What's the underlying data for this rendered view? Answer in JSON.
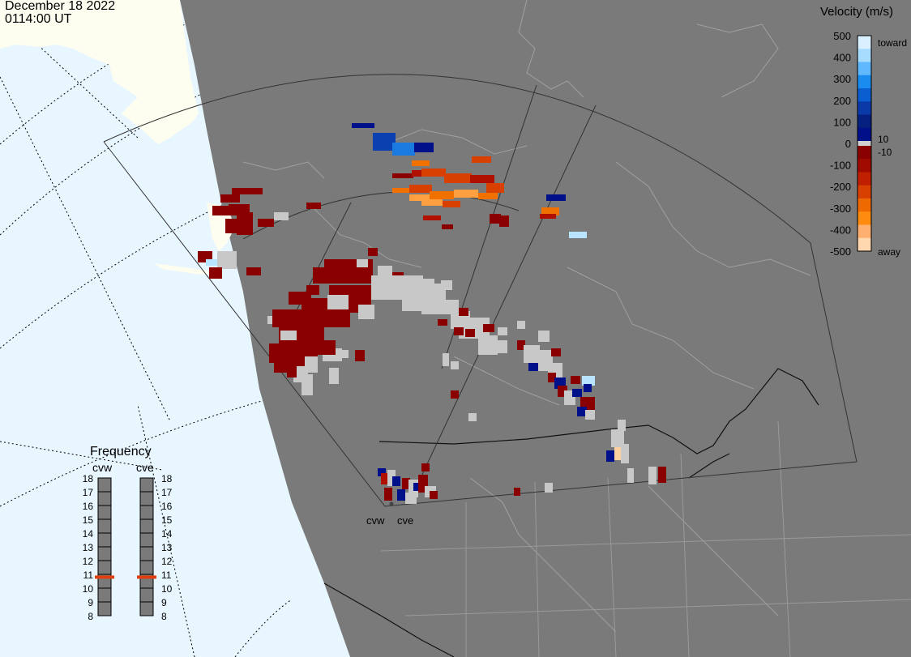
{
  "header": {
    "date": "December 18 2022",
    "time": "0114:00 UT"
  },
  "colors": {
    "ocean": "#e8f6ff",
    "land_visible": "#fdfdf0",
    "night_shade": "#7a7a7a",
    "coast": "#b0b0b0",
    "gray_scatter": "#c8c8c8"
  },
  "velocity_scale": {
    "title": "Velocity (m/s)",
    "tick_labels": [
      "500",
      "400",
      "300",
      "200",
      "100",
      "0",
      "-100",
      "-200",
      "-300",
      "-400",
      "-500"
    ],
    "end_labels": [
      "toward",
      "10",
      "-10",
      "away"
    ],
    "colors_toward": [
      "#d8f0ff",
      "#a8dcff",
      "#60b8ff",
      "#1a8cf0",
      "#0a5ed0",
      "#0a3aa8",
      "#062080",
      "#00108a"
    ],
    "colors_away": [
      "#8a0000",
      "#a00a00",
      "#c02000",
      "#d84000",
      "#ee6a00",
      "#ff8c10",
      "#ffb070",
      "#ffd8b0"
    ]
  },
  "frequency": {
    "title": "Frequency",
    "radars": [
      {
        "name": "cvw",
        "value_mhz": 10.8
      },
      {
        "name": "cve",
        "value_mhz": 10.8
      }
    ],
    "scale_labels": [
      "18",
      "17",
      "16",
      "15",
      "14",
      "13",
      "12",
      "11",
      "10",
      "9",
      "8"
    ]
  },
  "radar_sites": [
    {
      "name": "cvw"
    },
    {
      "name": "cve"
    }
  ]
}
